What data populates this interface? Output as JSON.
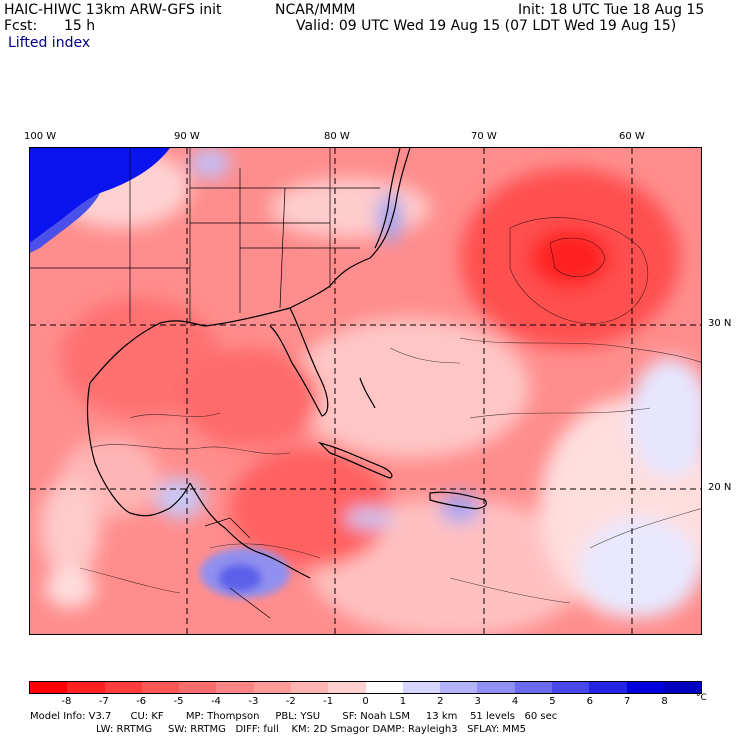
{
  "header": {
    "model": "HAIC-HIWC 13km ARW-GFS init",
    "org": "NCAR/MMM",
    "init": "Init: 18 UTC Tue 18 Aug 15",
    "fcst_label": "Fcst:",
    "fcst_value": "15 h",
    "valid": "Valid: 09 UTC Wed 19 Aug 15 (07 LDT Wed 19 Aug 15)",
    "field": "Lifted index"
  },
  "map": {
    "lon_labels": [
      "100 W",
      "90 W",
      "80 W",
      "70 W",
      "60 W"
    ],
    "lat_labels": [
      "30 N",
      "20 N"
    ],
    "colors": {
      "strong_red": "#ff2a2a",
      "mid_red": "#ff7b7b",
      "light_red": "#ffb0b0",
      "pale": "#ffe3e3",
      "light_blue": "#c9cdf7",
      "mid_blue": "#7a82ee",
      "strong_blue": "#0a14ee"
    }
  },
  "colorbar": {
    "labels": [
      "-8",
      "-7",
      "-6",
      "-5",
      "-4",
      "-3",
      "-2",
      "-1",
      "0",
      "1",
      "2",
      "3",
      "4",
      "5",
      "6",
      "7",
      "8"
    ],
    "unit": "°C",
    "colors": [
      "#ff0000",
      "#ff2020",
      "#ff3d3d",
      "#ff5656",
      "#ff6d6d",
      "#ff8484",
      "#ff9b9b",
      "#ffb4b4",
      "#ffd0d0",
      "#ffffff",
      "#d6d6ff",
      "#b3b3fa",
      "#8f8ff5",
      "#6b6bf0",
      "#4848ea",
      "#2424e5",
      "#0000dc",
      "#0000c0"
    ]
  },
  "model_info": {
    "line1": "Model Info: V3.7      CU: KF       MP: Thompson     PBL: YSU       SF: Noah LSM     13 km    51 levels   60 sec",
    "line2": "LW: RRTMG     SW: RRTMG   DIFF: full    KM: 2D Smagor DAMP: Rayleigh3   SFLAY: MM5"
  }
}
